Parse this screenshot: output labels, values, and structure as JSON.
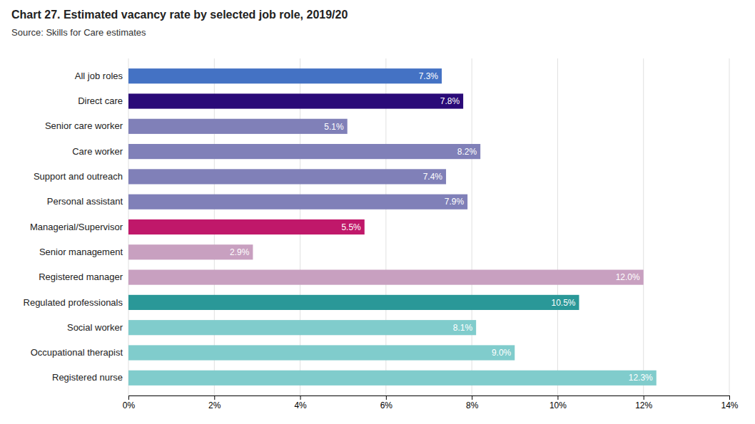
{
  "chart_data": {
    "type": "bar",
    "orientation": "horizontal",
    "title": "Chart 27. Estimated vacancy rate by selected job role, 2019/20",
    "subtitle": "Source: Skills for Care estimates",
    "categories": [
      "Registered nurse",
      "Occupational therapist",
      "Social worker",
      "Regulated professionals",
      "Registered manager",
      "Senior management",
      "Managerial/Supervisor",
      "Personal assistant",
      "Support and outreach",
      "Care worker",
      "Senior care worker",
      "Direct care",
      "All job roles"
    ],
    "values": [
      12.3,
      9.0,
      8.1,
      10.5,
      12.0,
      2.9,
      5.5,
      7.9,
      7.4,
      8.2,
      5.1,
      7.8,
      7.3
    ],
    "value_labels": [
      "12.3%",
      "9.0%",
      "8.1%",
      "10.5%",
      "12.0%",
      "2.9%",
      "5.5%",
      "7.9%",
      "7.4%",
      "8.2%",
      "5.1%",
      "7.8%",
      "7.3%"
    ],
    "colors": [
      "#80cccc",
      "#80cccc",
      "#80cccc",
      "#2a9898",
      "#c8a0c0",
      "#c8a0c0",
      "#c0186a",
      "#8080b8",
      "#8080b8",
      "#8080b8",
      "#8080b8",
      "#2a0a78",
      "#4472c4"
    ],
    "xlim": [
      0,
      14
    ],
    "xticks": [
      {
        "value": 0,
        "label": "0%"
      },
      {
        "value": 2,
        "label": "2%"
      },
      {
        "value": 4,
        "label": "4%"
      },
      {
        "value": 6,
        "label": "6%"
      },
      {
        "value": 8,
        "label": "8%"
      },
      {
        "value": 10,
        "label": "10%"
      },
      {
        "value": 12,
        "label": "12%"
      },
      {
        "value": 14,
        "label": "14%"
      }
    ],
    "grid": true,
    "data_labels": true
  }
}
